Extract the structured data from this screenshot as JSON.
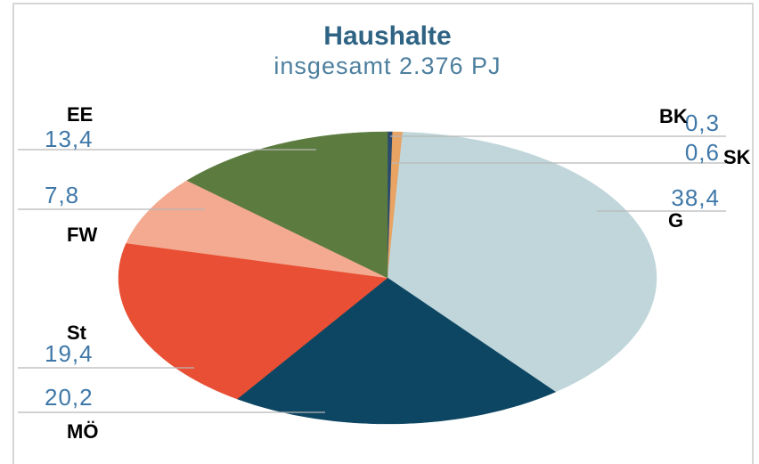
{
  "chart_data": {
    "type": "pie",
    "title": "Haushalte",
    "subtitle": "insgesamt 2.376 PJ",
    "categories": [
      "BK",
      "SK",
      "G",
      "MÖ",
      "St",
      "FW",
      "EE"
    ],
    "values": [
      0.3,
      0.6,
      38.4,
      20.2,
      19.4,
      7.8,
      13.4
    ],
    "value_labels": [
      "0,3",
      "0,6",
      "38,4",
      "20,2",
      "19,4",
      "7,8",
      "13,4"
    ],
    "colors": [
      "#2b4a70",
      "#e9a363",
      "#c0d6da",
      "#0d4663",
      "#e84f34",
      "#f3aa90",
      "#5b7b3f"
    ]
  }
}
